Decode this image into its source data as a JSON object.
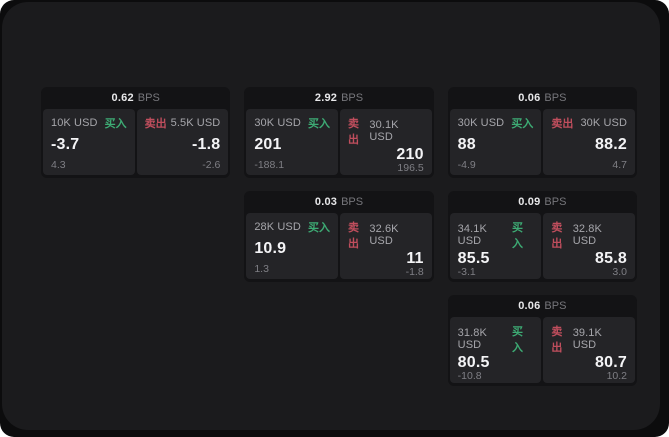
{
  "labels": {
    "bps": "BPS",
    "buy": "买入",
    "sell": "卖出"
  },
  "colors": {
    "buy_green": "#3dab74",
    "sell_red": "#c04e5d",
    "outer_background": "#0c0c0d",
    "panel_background": "#1b1b1d",
    "card_background": "#131315",
    "subpanel_background": "#242427"
  },
  "cards": [
    {
      "bps": "0.62",
      "buy": {
        "amount": "10K USD",
        "price": "-3.7",
        "delta": "4.3"
      },
      "sell": {
        "amount": "5.5K USD",
        "price": "-1.8",
        "delta": "-2.6"
      }
    },
    {
      "bps": "2.92",
      "buy": {
        "amount": "30K USD",
        "price": "201",
        "delta": "-188.1"
      },
      "sell": {
        "amount": "30.1K USD",
        "price": "210",
        "delta": "196.5"
      }
    },
    {
      "bps": "0.06",
      "buy": {
        "amount": "30K USD",
        "price": "88",
        "delta": "-4.9"
      },
      "sell": {
        "amount": "30K USD",
        "price": "88.2",
        "delta": "4.7"
      }
    },
    {
      "bps": "0.03",
      "buy": {
        "amount": "28K USD",
        "price": "10.9",
        "delta": "1.3"
      },
      "sell": {
        "amount": "32.6K USD",
        "price": "11",
        "delta": "-1.8"
      }
    },
    {
      "bps": "0.09",
      "buy": {
        "amount": "34.1K USD",
        "price": "85.5",
        "delta": "-3.1"
      },
      "sell": {
        "amount": "32.8K USD",
        "price": "85.8",
        "delta": "3.0"
      }
    },
    {
      "bps": "0.06",
      "buy": {
        "amount": "31.8K USD",
        "price": "80.5",
        "delta": "-10.8"
      },
      "sell": {
        "amount": "39.1K USD",
        "price": "80.7",
        "delta": "10.2"
      }
    }
  ]
}
